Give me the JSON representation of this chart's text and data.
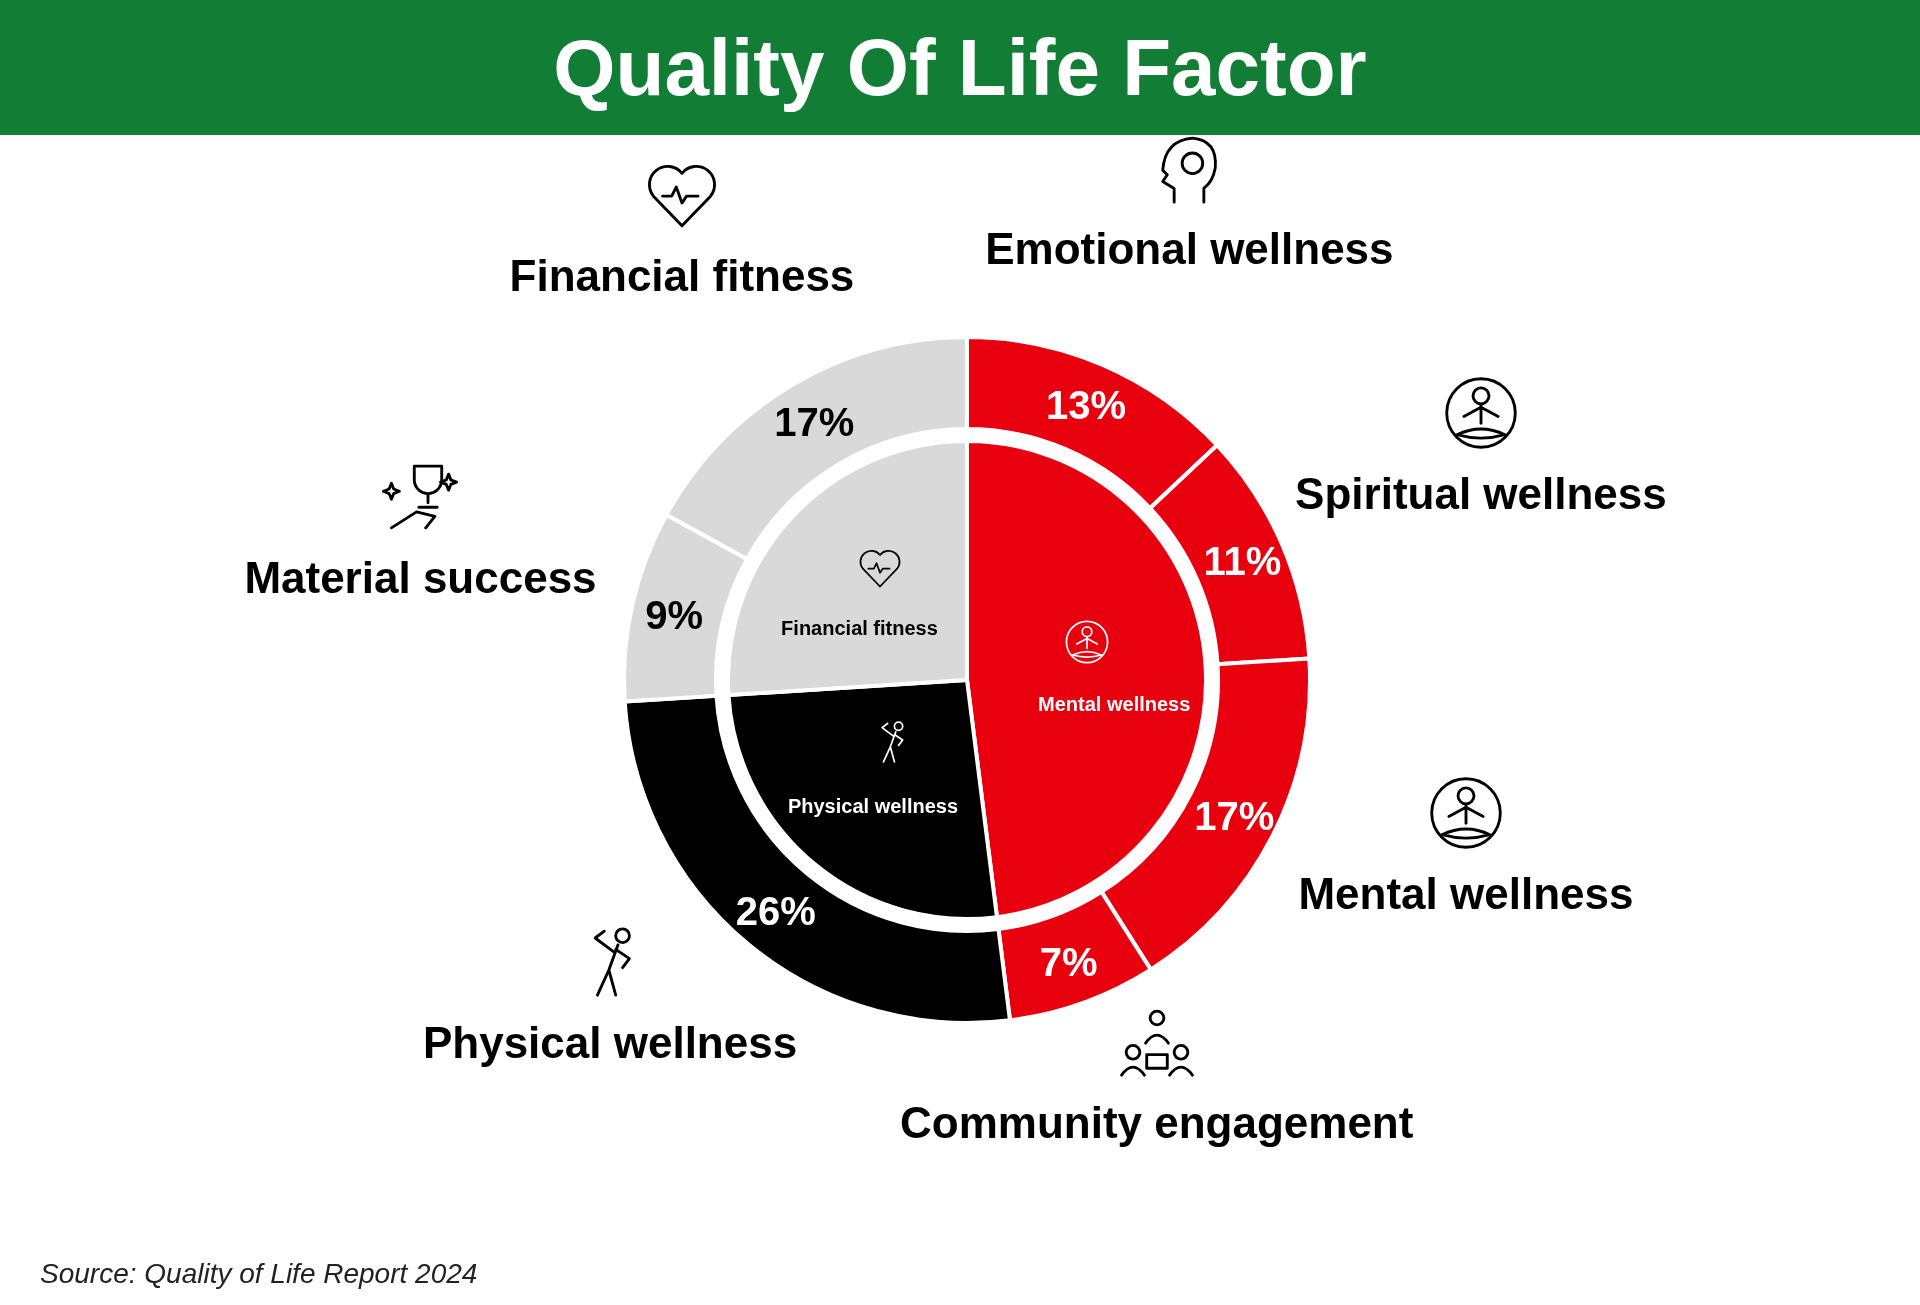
{
  "chart_data": [
    {
      "type": "pie",
      "title": "Quality Of Life Factor",
      "categories": [
        "Mental wellness",
        "Physical wellness",
        "Financial fitness"
      ],
      "values": [
        48,
        26,
        26
      ],
      "colors": [
        "#e8000f",
        "#000000",
        "#d9d9d9"
      ]
    },
    {
      "type": "donut",
      "categories": [
        "Emotional wellness",
        "Spiritual wellness",
        "Mental wellness",
        "Community engagement",
        "Physical wellness",
        "Material success",
        "Financial fitness"
      ],
      "values": [
        13,
        11,
        17,
        7,
        26,
        9,
        17
      ],
      "colors": [
        "#e8000f",
        "#e8000f",
        "#e8000f",
        "#e8000f",
        "#000000",
        "#d9d9d9",
        "#d9d9d9"
      ],
      "value_labels": [
        "13%",
        "11%",
        "17%",
        "7%",
        "26%",
        "9%",
        "17%"
      ],
      "annotations": [
        "Source: Quality of Life Report 2024"
      ]
    }
  ]
}
